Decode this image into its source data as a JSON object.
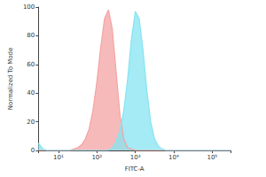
{
  "chart_data": {
    "type": "area",
    "x_label": "FITC-A",
    "y_label": "Normalized To Mode",
    "log": "x",
    "grid": false,
    "x": [
      3,
      4,
      5,
      6.3,
      8,
      10,
      12.6,
      15.8,
      20,
      25,
      32,
      40,
      50,
      63,
      79,
      100,
      126,
      158,
      200,
      251,
      316,
      398,
      501,
      631,
      794,
      1000,
      1259,
      1585,
      1995,
      2512,
      3162,
      3981,
      5012,
      6310,
      7943,
      10000,
      12589,
      15849,
      19953,
      25119,
      31623,
      39811,
      50119,
      63096,
      79433,
      100000,
      158489,
      300000
    ],
    "series": [
      {
        "color": "#f4a3a3",
        "values": [
          0,
          0,
          0,
          0,
          0,
          0,
          0,
          0,
          0,
          1,
          2,
          4,
          8,
          15,
          28,
          48,
          72,
          92,
          98,
          85,
          55,
          25,
          8,
          2,
          1,
          0,
          0,
          0,
          0,
          0,
          0,
          0,
          0,
          0,
          0,
          0,
          0,
          0,
          0,
          0,
          0,
          0,
          0,
          0,
          0,
          0,
          0,
          0
        ]
      },
      {
        "color": "#86e4f2",
        "values": [
          5,
          1,
          0,
          0,
          0,
          0,
          0,
          0,
          0,
          0,
          0,
          0,
          0,
          0,
          0,
          0,
          0,
          0,
          0,
          2,
          6,
          14,
          28,
          50,
          78,
          97,
          92,
          70,
          42,
          20,
          8,
          3,
          1,
          0,
          0,
          0,
          0,
          0,
          0,
          0,
          0,
          0,
          0,
          0,
          0,
          0,
          0,
          0
        ]
      }
    ],
    "xlim": [
      3,
      300000
    ],
    "xticks": [
      {
        "value": 10,
        "label": "10¹"
      },
      {
        "value": 100,
        "label": "10²"
      },
      {
        "value": 1000,
        "label": "10³"
      },
      {
        "value": 10000,
        "label": "10⁴"
      },
      {
        "value": 100000,
        "label": "10⁵"
      }
    ],
    "ylim": [
      0,
      100
    ],
    "yticks": [
      0,
      20,
      40,
      60,
      80,
      100
    ]
  }
}
